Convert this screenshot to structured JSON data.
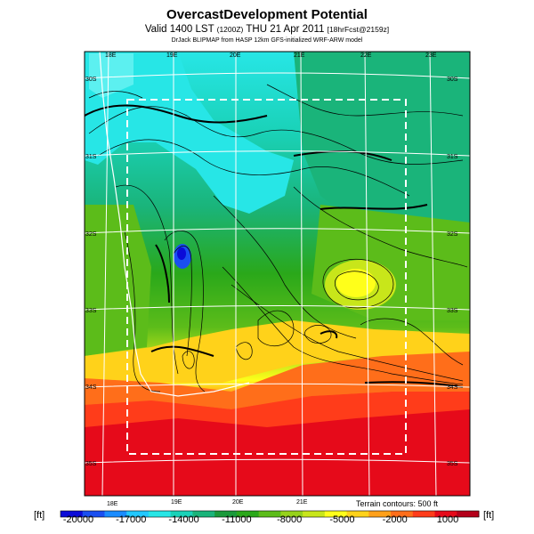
{
  "header": {
    "title": "OvercastDevelopment Potential",
    "subtitle_main": "Valid 1400 LST",
    "subtitle_utc": "(1200Z)",
    "subtitle_date": "THU 21 Apr 2011",
    "subtitle_fcst": "[18hrFcst@2159z]",
    "credit": "DrJack BLIPMAP from HASP 12km GFS-initialized WRF-ARW model"
  },
  "map": {
    "lon_labels_top": [
      "18E",
      "19E",
      "20E",
      "21E",
      "22E",
      "23E"
    ],
    "lon_labels_bottom": [
      "18E",
      "19E",
      "20E",
      "21E"
    ],
    "lat_labels_left": [
      "30S",
      "31S",
      "32S",
      "33S",
      "34S",
      "35S"
    ],
    "lat_labels_right": [
      "30S",
      "31S",
      "32S",
      "33S",
      "34S",
      "35S"
    ],
    "domain_box": "dashed white",
    "land_outline": "white coastline"
  },
  "colorbar": {
    "unit_left": "[ft]",
    "unit_right": "[ft]",
    "terrain_note": "Terrain contours: 500 ft",
    "ticks": [
      "-20000",
      "-17000",
      "-14000",
      "-11000",
      "-8000",
      "-5000",
      "-2000",
      "1000"
    ],
    "colors": [
      "#0b0bd8",
      "#1a4ff0",
      "#1a8cff",
      "#22c8ff",
      "#27e6e6",
      "#1ad2b8",
      "#1ab47a",
      "#1a9a3a",
      "#2aa81a",
      "#5cbc1a",
      "#96d21a",
      "#c8e61a",
      "#ffff1a",
      "#ffd21a",
      "#ffa01a",
      "#ff6e1a",
      "#ff3c1a",
      "#e60a1a",
      "#b4001a"
    ]
  }
}
